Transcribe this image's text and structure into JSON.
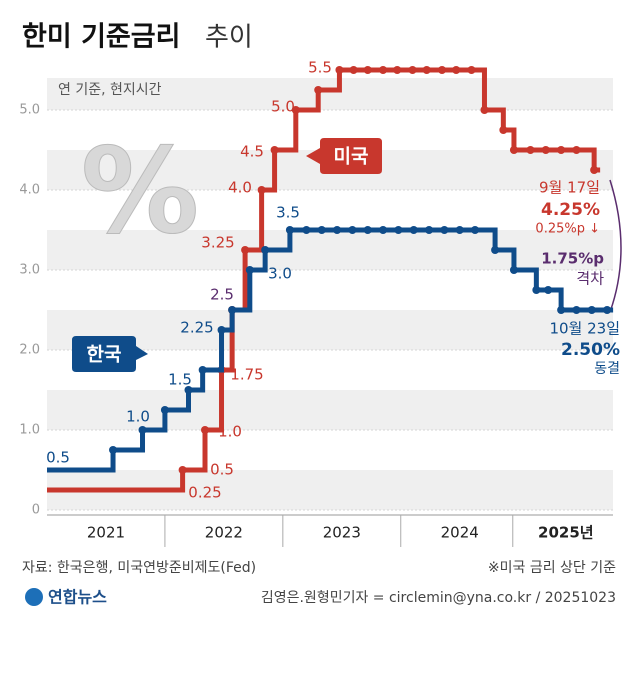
{
  "chart_data": {
    "type": "step",
    "title": "한미 기준금리",
    "title_suffix": "추이",
    "unit_note": "연 기준, 현지시간",
    "watermark": "%",
    "xlim": [
      2021.0,
      2025.8
    ],
    "xticks": [
      {
        "value": 2021.5,
        "label": "2021"
      },
      {
        "value": 2022.5,
        "label": "2022"
      },
      {
        "value": 2023.5,
        "label": "2023"
      },
      {
        "value": 2024.5,
        "label": "2024"
      },
      {
        "value": 2025.4,
        "label": "2025년"
      }
    ],
    "ylim": [
      0,
      5.8
    ],
    "yticks": [
      0,
      {
        "value": 1,
        "label": "1.0"
      },
      {
        "value": 2,
        "label": "2.0"
      },
      {
        "value": 3,
        "label": "3.0"
      },
      {
        "value": 4,
        "label": "4.0"
      },
      {
        "value": 5,
        "label": "5.0"
      }
    ],
    "grid": true,
    "series": [
      {
        "name": "미국",
        "color": "#c8372d",
        "x": [
          2021.0,
          2022.15,
          2022.34,
          2022.48,
          2022.57,
          2022.68,
          2022.82,
          2022.93,
          2023.11,
          2023.3,
          2023.48,
          2023.6,
          2023.72,
          2023.85,
          2023.97,
          2024.1,
          2024.22,
          2024.35,
          2024.47,
          2024.6,
          2024.71,
          2024.87,
          2024.96,
          2025.1,
          2025.23,
          2025.36,
          2025.49,
          2025.64
        ],
        "values": [
          0.25,
          0.5,
          1.0,
          1.75,
          2.5,
          3.25,
          4.0,
          4.5,
          5.0,
          5.25,
          5.5,
          5.5,
          5.5,
          5.5,
          5.5,
          5.5,
          5.5,
          5.5,
          5.5,
          5.5,
          5.0,
          4.75,
          4.5,
          4.5,
          4.5,
          4.5,
          4.5,
          4.25
        ],
        "value_labels": [
          "0.25",
          "0.5",
          "1.0",
          "1.75",
          "2.5",
          "3.25",
          "4.0",
          "4.5",
          "5.0",
          null,
          "5.5",
          null,
          null,
          null,
          null,
          null,
          null,
          null,
          null,
          null,
          null,
          null,
          null,
          null,
          null,
          null,
          null,
          null
        ]
      },
      {
        "name": "한국",
        "color": "#0f4c8a",
        "x": [
          2021.0,
          2021.56,
          2021.81,
          2022.0,
          2022.2,
          2022.32,
          2022.48,
          2022.57,
          2022.72,
          2022.85,
          2023.06,
          2023.2,
          2023.33,
          2023.46,
          2023.59,
          2023.72,
          2023.85,
          2023.98,
          2024.11,
          2024.24,
          2024.37,
          2024.5,
          2024.63,
          2024.8,
          2024.96,
          2025.15,
          2025.25,
          2025.36,
          2025.49,
          2025.62,
          2025.75
        ],
        "values": [
          0.5,
          0.75,
          1.0,
          1.25,
          1.5,
          1.75,
          2.25,
          2.5,
          3.0,
          3.25,
          3.5,
          3.5,
          3.5,
          3.5,
          3.5,
          3.5,
          3.5,
          3.5,
          3.5,
          3.5,
          3.5,
          3.5,
          3.5,
          3.25,
          3.0,
          2.75,
          2.75,
          2.5,
          2.5,
          2.5,
          2.5
        ],
        "value_labels": [
          "0.5",
          null,
          "1.0",
          null,
          "1.5",
          null,
          "2.25",
          null,
          "3.0",
          null,
          "3.5",
          null,
          null,
          null,
          null,
          null,
          null,
          null,
          null,
          null,
          null,
          null,
          null,
          null,
          null,
          null,
          null,
          null,
          null,
          null,
          null
        ]
      }
    ],
    "annotations": {
      "us_note": [
        "9월 17일",
        "4.25%",
        "0.25%p ↓"
      ],
      "gap_note": [
        "1.75%p",
        "격차"
      ],
      "kr_note": [
        "10월 23일",
        "2.50%",
        "동결"
      ]
    },
    "source": "자료: 한국은행, 미국연방준비제도(Fed)",
    "footnote": "※미국 금리 상단 기준",
    "logo": "연합뉴스",
    "credit": "김영은.원형민기자 = circlemin@yna.co.kr / 20251023"
  }
}
